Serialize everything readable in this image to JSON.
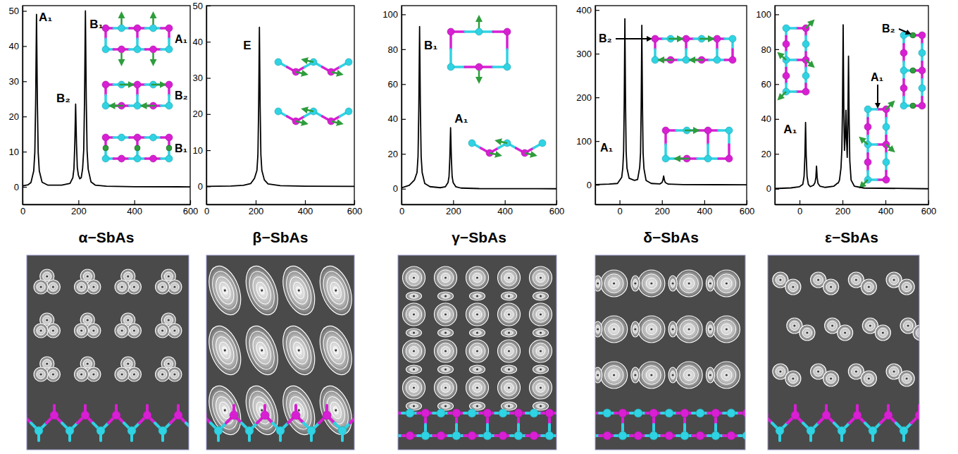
{
  "chart_data": [
    {
      "type": "line",
      "title": "α−SbAs",
      "color": "#000000",
      "x": [
        0,
        20,
        30,
        40,
        44,
        47,
        50,
        53,
        56,
        60,
        70,
        90,
        140,
        170,
        180,
        184,
        187,
        190,
        193,
        196,
        200,
        205,
        210,
        215,
        219,
        222,
        225,
        228,
        231,
        235,
        245,
        260,
        300,
        400,
        600
      ],
      "values": [
        0.3,
        0.6,
        1.2,
        4.5,
        9.8,
        24.5,
        49,
        24.5,
        9.8,
        4.5,
        1.3,
        0.5,
        0.5,
        1,
        2.6,
        5.2,
        12,
        23.5,
        12.5,
        5.5,
        3.3,
        2.3,
        2.6,
        5.2,
        10.5,
        25,
        50,
        25,
        10.3,
        5,
        1.4,
        0.5,
        0.2,
        0.05,
        0
      ],
      "xlim": [
        0,
        600
      ],
      "xticks": [
        0,
        200,
        400,
        600
      ],
      "ylim": [
        -5,
        51.5
      ],
      "yticks": [
        0,
        10,
        20,
        30,
        40,
        50
      ],
      "annotations": [
        {
          "text": "A₁",
          "x": 58,
          "y": 47
        },
        {
          "text": "B₂",
          "x": 121,
          "y": 24
        },
        {
          "text": "B₁",
          "x": 240,
          "y": 45
        }
      ],
      "inset_labels": [
        "A₁",
        "B₂",
        "B₁"
      ]
    },
    {
      "type": "line",
      "title": "β−SbAs",
      "color": "#000000",
      "x": [
        0,
        100,
        150,
        180,
        195,
        205,
        209,
        212,
        215,
        218,
        221,
        225,
        235,
        250,
        300,
        400,
        600
      ],
      "values": [
        0,
        0.1,
        0.3,
        0.8,
        2.2,
        4.4,
        8.8,
        22,
        44,
        22,
        8.8,
        4.4,
        1.8,
        0.7,
        0.2,
        0.05,
        0
      ],
      "xlim": [
        0,
        600
      ],
      "xticks": [
        0,
        200,
        400,
        600
      ],
      "ylim": [
        -5,
        50
      ],
      "yticks": [
        0,
        10,
        20,
        30,
        40,
        50
      ],
      "annotations": [
        {
          "text": "E",
          "x": 149,
          "y": 38
        }
      ]
    },
    {
      "type": "line",
      "title": "γ−SbAs",
      "color": "#000000",
      "x": [
        0,
        30,
        50,
        60,
        64,
        67,
        70,
        73,
        76,
        80,
        90,
        110,
        150,
        170,
        180,
        184,
        187,
        190,
        193,
        196,
        200,
        210,
        230,
        300,
        600
      ],
      "values": [
        0.5,
        2,
        5,
        9.3,
        18.6,
        46.5,
        93,
        46.5,
        18.6,
        9.3,
        3,
        1.2,
        0.6,
        1.2,
        3.5,
        7,
        17.5,
        35,
        17.5,
        7,
        3.5,
        1.2,
        0.4,
        0.1,
        0
      ],
      "xlim": [
        0,
        600
      ],
      "xticks": [
        0,
        200,
        400,
        600
      ],
      "ylim": [
        -9,
        105
      ],
      "yticks": [
        0,
        20,
        40,
        60,
        80,
        100
      ],
      "annotations": [
        {
          "text": "B₁",
          "x": 87,
          "y": 80
        },
        {
          "text": "A₁",
          "x": 205,
          "y": 38
        }
      ]
    },
    {
      "type": "line",
      "title": "δ−SbAs",
      "color": "#000000",
      "x": [
        -115,
        -50,
        -10,
        10,
        15,
        19,
        22,
        25,
        28,
        31,
        35,
        45,
        70,
        85,
        95,
        99,
        102,
        105,
        108,
        111,
        115,
        125,
        150,
        190,
        200,
        204,
        208,
        212,
        216,
        230,
        300,
        600
      ],
      "values": [
        0.3,
        1.5,
        3,
        17,
        38,
        76,
        190,
        380,
        190,
        76,
        38,
        15,
        10,
        12,
        40,
        73,
        182,
        365,
        182,
        73,
        37,
        10,
        3,
        2,
        5,
        10,
        20,
        10,
        5,
        1.5,
        0.3,
        0
      ],
      "xlim": [
        -115,
        600
      ],
      "xticks": [
        0,
        200,
        400,
        600
      ],
      "ylim": [
        -45,
        410
      ],
      "yticks": [
        0,
        100,
        200,
        300,
        400
      ],
      "inset_labels": [
        "B₂",
        "A₁"
      ]
    },
    {
      "type": "line",
      "title": "ε−SbAs",
      "color": "#000000",
      "x": [
        -115,
        -40,
        0,
        15,
        21,
        25,
        28,
        31,
        35,
        41,
        50,
        65,
        72,
        76,
        79,
        82,
        86,
        95,
        120,
        160,
        170,
        174,
        177,
        180,
        186,
        193,
        197,
        200,
        203,
        206,
        209,
        213,
        216,
        219,
        222,
        225,
        228,
        231,
        234,
        240,
        255,
        300,
        600
      ],
      "values": [
        0.1,
        0.5,
        1.2,
        2.5,
        7,
        19,
        38,
        19,
        7,
        2.5,
        1.2,
        2,
        3.6,
        6.5,
        13,
        6.5,
        3,
        1.5,
        0.8,
        1.5,
        2.5,
        3,
        3.2,
        3.3,
        5,
        12,
        23,
        47,
        94,
        47,
        22,
        30,
        45,
        28,
        18,
        38,
        76,
        38,
        16,
        5,
        1.5,
        0.4,
        0
      ],
      "xlim": [
        -115,
        600
      ],
      "xticks": [
        0,
        200,
        400,
        600
      ],
      "ylim": [
        -9,
        105
      ],
      "yticks": [
        0,
        20,
        40,
        60,
        80,
        100
      ],
      "annotations": [
        {
          "text": "A₁",
          "x": -75,
          "y": 32
        }
      ],
      "inset_labels": [
        "B₂",
        "A₁"
      ]
    }
  ]
}
